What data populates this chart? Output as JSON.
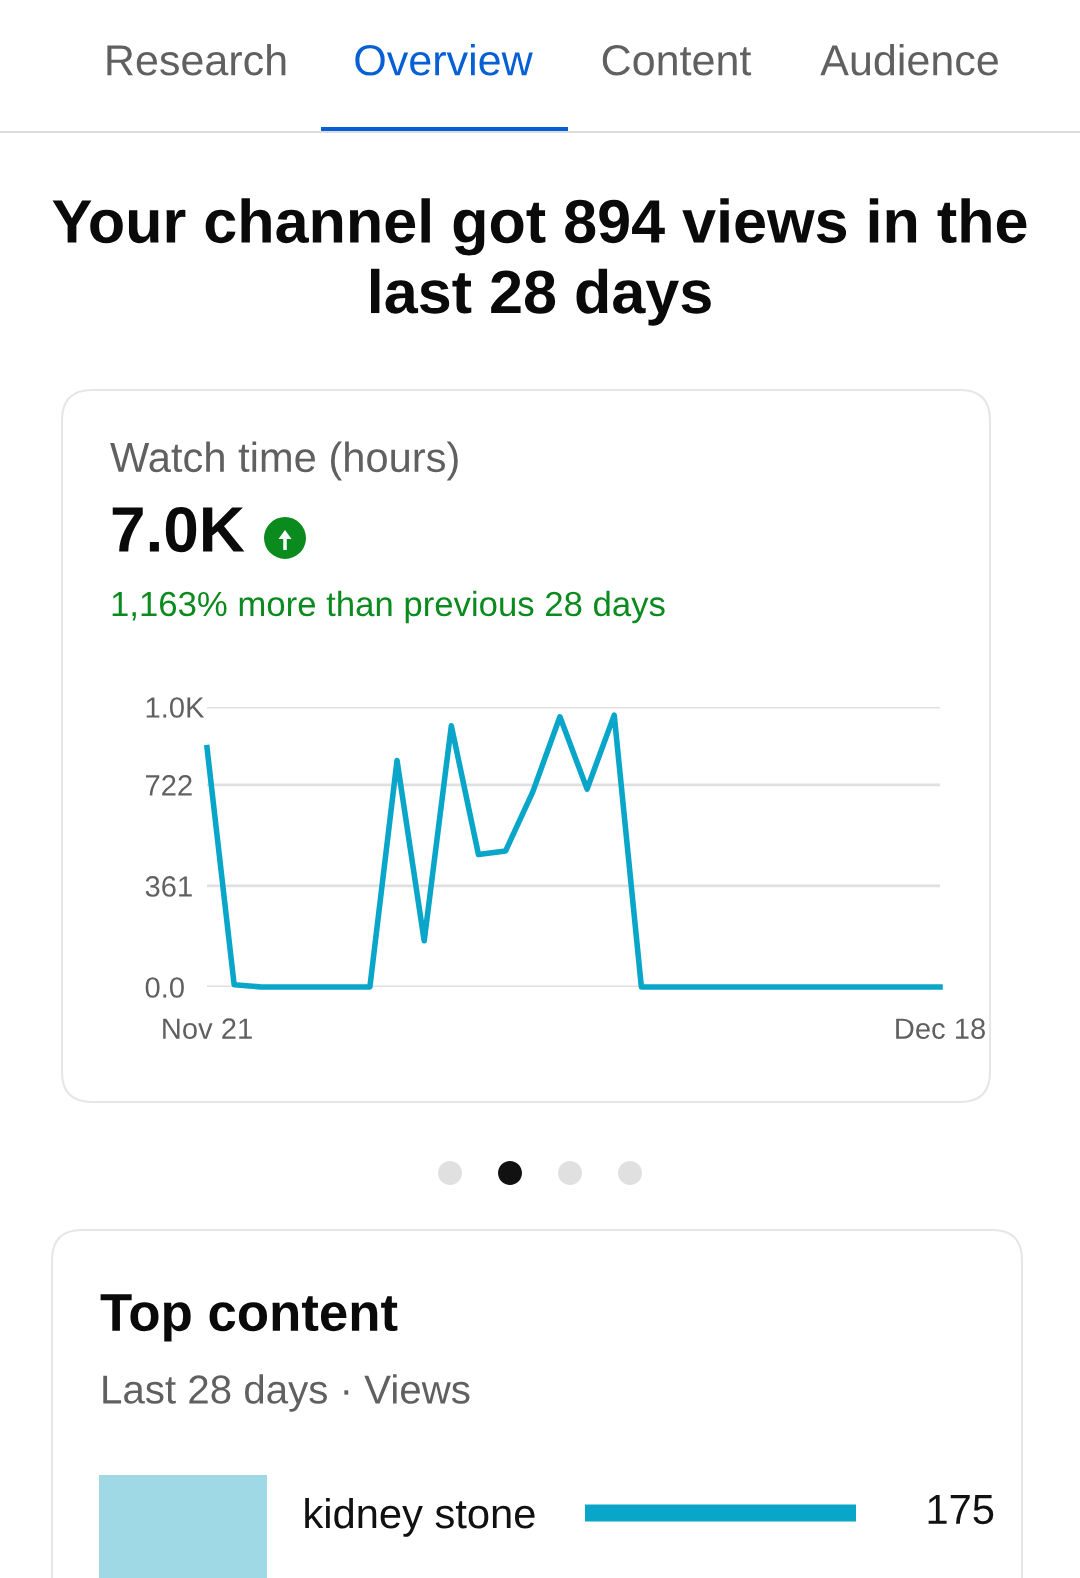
{
  "chart_data": [
    {
      "type": "line",
      "title": "Your channel got 894 views in the last 28 days",
      "subtitle": "Watch time (hours)",
      "annotations": [
        "Research",
        "Overview",
        "Content",
        "Audience",
        "7.0K",
        "1,163% more than previous 28 days"
      ],
      "categories": [
        "Nov 21",
        null,
        null,
        null,
        null,
        null,
        null,
        null,
        null,
        null,
        null,
        null,
        null,
        null,
        null,
        null,
        null,
        null,
        null,
        null,
        null,
        null,
        null,
        null,
        null,
        null,
        null,
        "Dec 18"
      ],
      "series": [
        {
          "color": "#0aa6c9",
          "values": [
            855,
            8,
            0,
            0,
            0,
            0,
            0,
            809,
            165,
            933,
            473,
            486,
            697,
            965,
            707,
            971,
            0,
            0,
            0,
            0,
            0,
            0,
            0,
            0,
            0,
            0,
            0,
            0
          ]
        }
      ],
      "ylim": [
        0,
        1000
      ],
      "yticks": [
        {
          "value": 0,
          "label": "0.0"
        },
        361,
        722,
        {
          "value": 1000,
          "label": "1.0K"
        }
      ],
      "grid": "y",
      "legend": false,
      "marker": "none",
      "line_style": "solid"
    },
    {
      "type": "bar",
      "orientation": "horizontal",
      "title": "Top content",
      "subtitle": "Last 28 days · Views",
      "categories": [
        "kidney stone"
      ],
      "values": [
        175
      ],
      "color": "#0aa6c9",
      "data_labels": true,
      "tick_labels": "y"
    }
  ]
}
